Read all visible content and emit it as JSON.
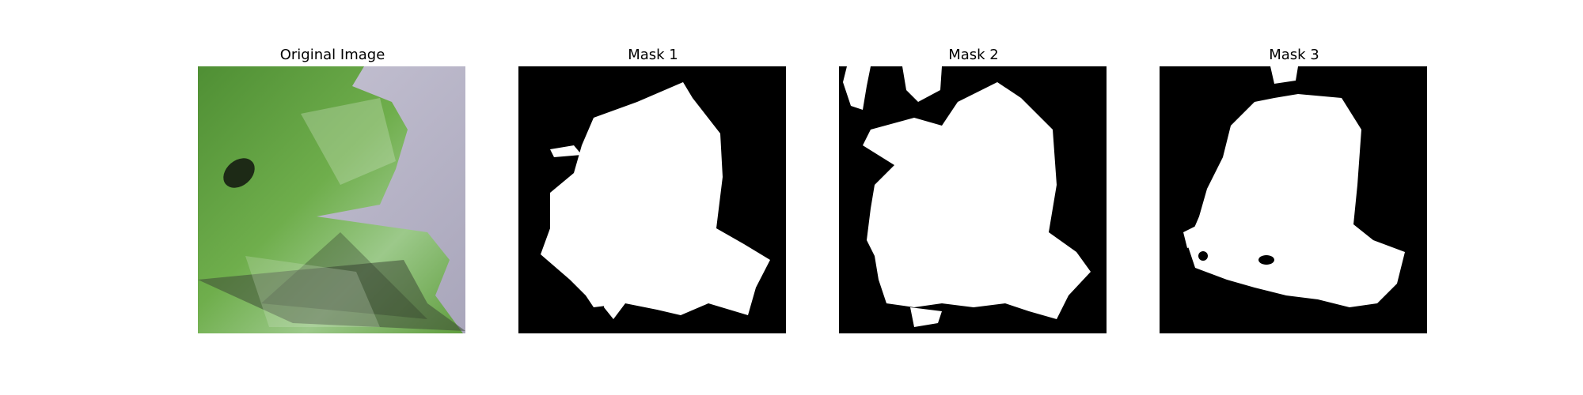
{
  "figure": {
    "panels": [
      {
        "title": "Original Image",
        "image": "leaf-photo"
      },
      {
        "title": "Mask 1",
        "image": "binary-mask"
      },
      {
        "title": "Mask 2",
        "image": "binary-mask"
      },
      {
        "title": "Mask 3",
        "image": "binary-mask"
      }
    ],
    "colors": {
      "mask_foreground": "#ffffff",
      "mask_background": "#000000",
      "leaf_green": "#5b9a3c",
      "surface_grey": "#b9b6c8"
    }
  }
}
